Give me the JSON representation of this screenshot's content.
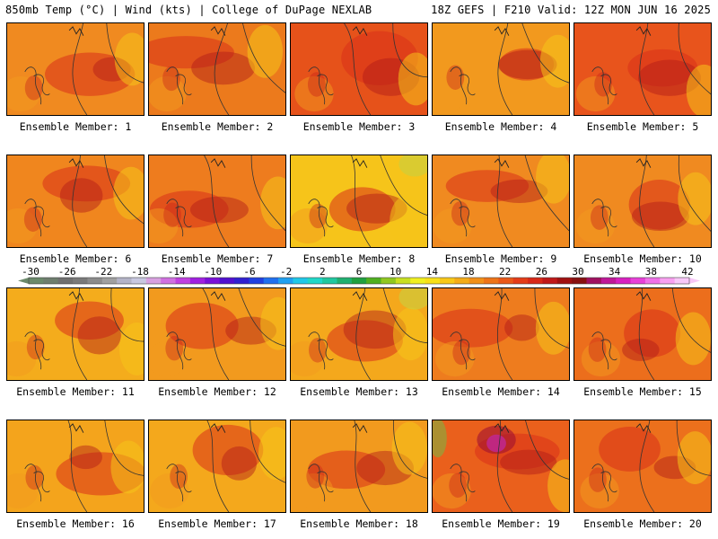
{
  "header": {
    "left": "850mb Temp (°C) | Wind (kts) | College of DuPage NEXLAB",
    "right": "18Z GEFS | F210 Valid: 12Z MON JUN 16 2025"
  },
  "member_label_prefix": "Ensemble Member:",
  "members": [
    {
      "id": 1,
      "label": "Ensemble Member: 1",
      "base": "#f08a20"
    },
    {
      "id": 2,
      "label": "Ensemble Member: 2",
      "base": "#ec7a1c"
    },
    {
      "id": 3,
      "label": "Ensemble Member: 3",
      "base": "#e6521a"
    },
    {
      "id": 4,
      "label": "Ensemble Member: 4",
      "base": "#f2991e"
    },
    {
      "id": 5,
      "label": "Ensemble Member: 5",
      "base": "#e8541c"
    },
    {
      "id": 6,
      "label": "Ensemble Member: 6",
      "base": "#f0861e"
    },
    {
      "id": 7,
      "label": "Ensemble Member: 7",
      "base": "#ee7c1e"
    },
    {
      "id": 8,
      "label": "Ensemble Member: 8",
      "base": "#f6c41a"
    },
    {
      "id": 9,
      "label": "Ensemble Member: 9",
      "base": "#f08a20"
    },
    {
      "id": 10,
      "label": "Ensemble Member: 10",
      "base": "#f08a20"
    },
    {
      "id": 11,
      "label": "Ensemble Member: 11",
      "base": "#f4ac1c"
    },
    {
      "id": 12,
      "label": "Ensemble Member: 12",
      "base": "#f29a1e"
    },
    {
      "id": 13,
      "label": "Ensemble Member: 13",
      "base": "#f4a81c"
    },
    {
      "id": 14,
      "label": "Ensemble Member: 14",
      "base": "#ee7c1e"
    },
    {
      "id": 15,
      "label": "Ensemble Member: 15",
      "base": "#ec6e1c"
    },
    {
      "id": 16,
      "label": "Ensemble Member: 16",
      "base": "#f4a41c"
    },
    {
      "id": 17,
      "label": "Ensemble Member: 17",
      "base": "#f4a81c"
    },
    {
      "id": 18,
      "label": "Ensemble Member: 18",
      "base": "#f29a1e"
    },
    {
      "id": 19,
      "label": "Ensemble Member: 19",
      "base": "#ea601c"
    },
    {
      "id": 20,
      "label": "Ensemble Member: 20",
      "base": "#ec701c"
    }
  ],
  "colorbar": {
    "ticks": [
      "-30",
      "-26",
      "-22",
      "-18",
      "-14",
      "-10",
      "-6",
      "-2",
      "2",
      "6",
      "10",
      "14",
      "18",
      "22",
      "26",
      "30",
      "34",
      "38",
      "42"
    ],
    "colors": [
      "#6b8a6b",
      "#6e7e6e",
      "#707070",
      "#7a7a7a",
      "#8c8c8c",
      "#a0a0a0",
      "#b4b4c8",
      "#c8c8e0",
      "#d8a0e0",
      "#d070e0",
      "#c040e0",
      "#a020e0",
      "#7a10d8",
      "#5010d0",
      "#3020d0",
      "#2040e0",
      "#2070f0",
      "#20a0f0",
      "#20c8e8",
      "#20d8c8",
      "#20c8a0",
      "#20b070",
      "#20a040",
      "#50b020",
      "#90c820",
      "#c8e020",
      "#f0f020",
      "#f8e018",
      "#f8c818",
      "#f4ac18",
      "#f29018",
      "#ee7418",
      "#ea5818",
      "#e43c18",
      "#d82818",
      "#c01818",
      "#a01010",
      "#881010",
      "#a01060",
      "#c01898",
      "#d820c0",
      "#e840d8",
      "#f070e8",
      "#f8a0f0",
      "#f8c8f8"
    ]
  }
}
